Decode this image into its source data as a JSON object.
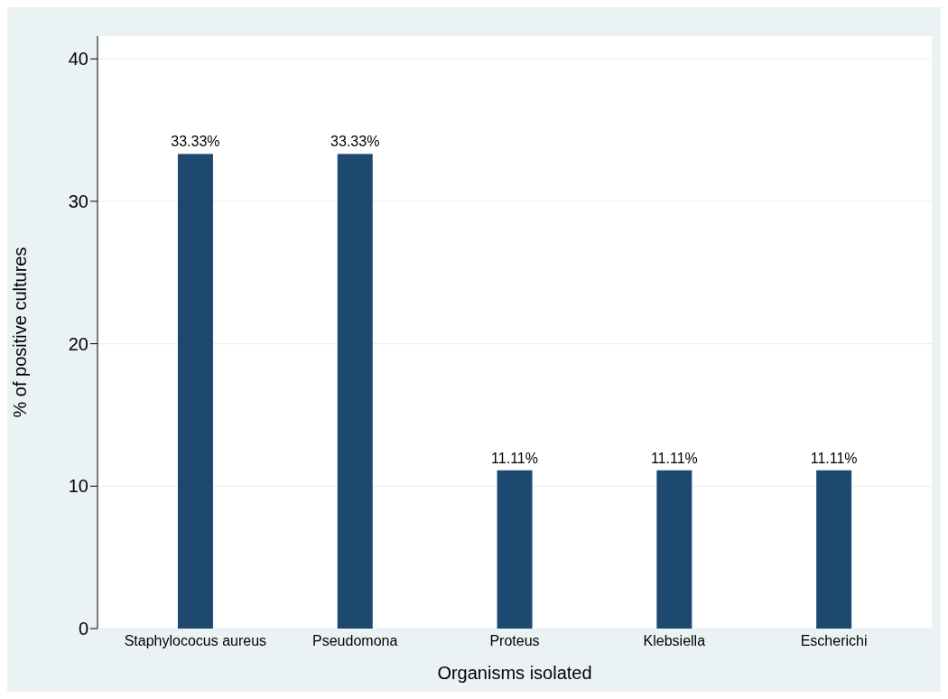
{
  "chart_data": {
    "type": "bar",
    "xlabel": "Organisms isolated",
    "ylabel": "% of positive cultures",
    "categories": [
      "Staphylococus aureus",
      "Pseudomona",
      "Proteus",
      "Klebsiella",
      "Escherichi"
    ],
    "values": [
      33.33,
      33.33,
      11.11,
      11.11,
      11.11
    ],
    "color": "#1d4870",
    "value_labels": [
      "33.33%",
      "33.33%",
      "11.11%",
      "11.11%",
      "11.11%"
    ],
    "ylim": [
      0,
      41.6
    ],
    "yticks": [
      0,
      10,
      20,
      30,
      40
    ],
    "grid": "y"
  }
}
